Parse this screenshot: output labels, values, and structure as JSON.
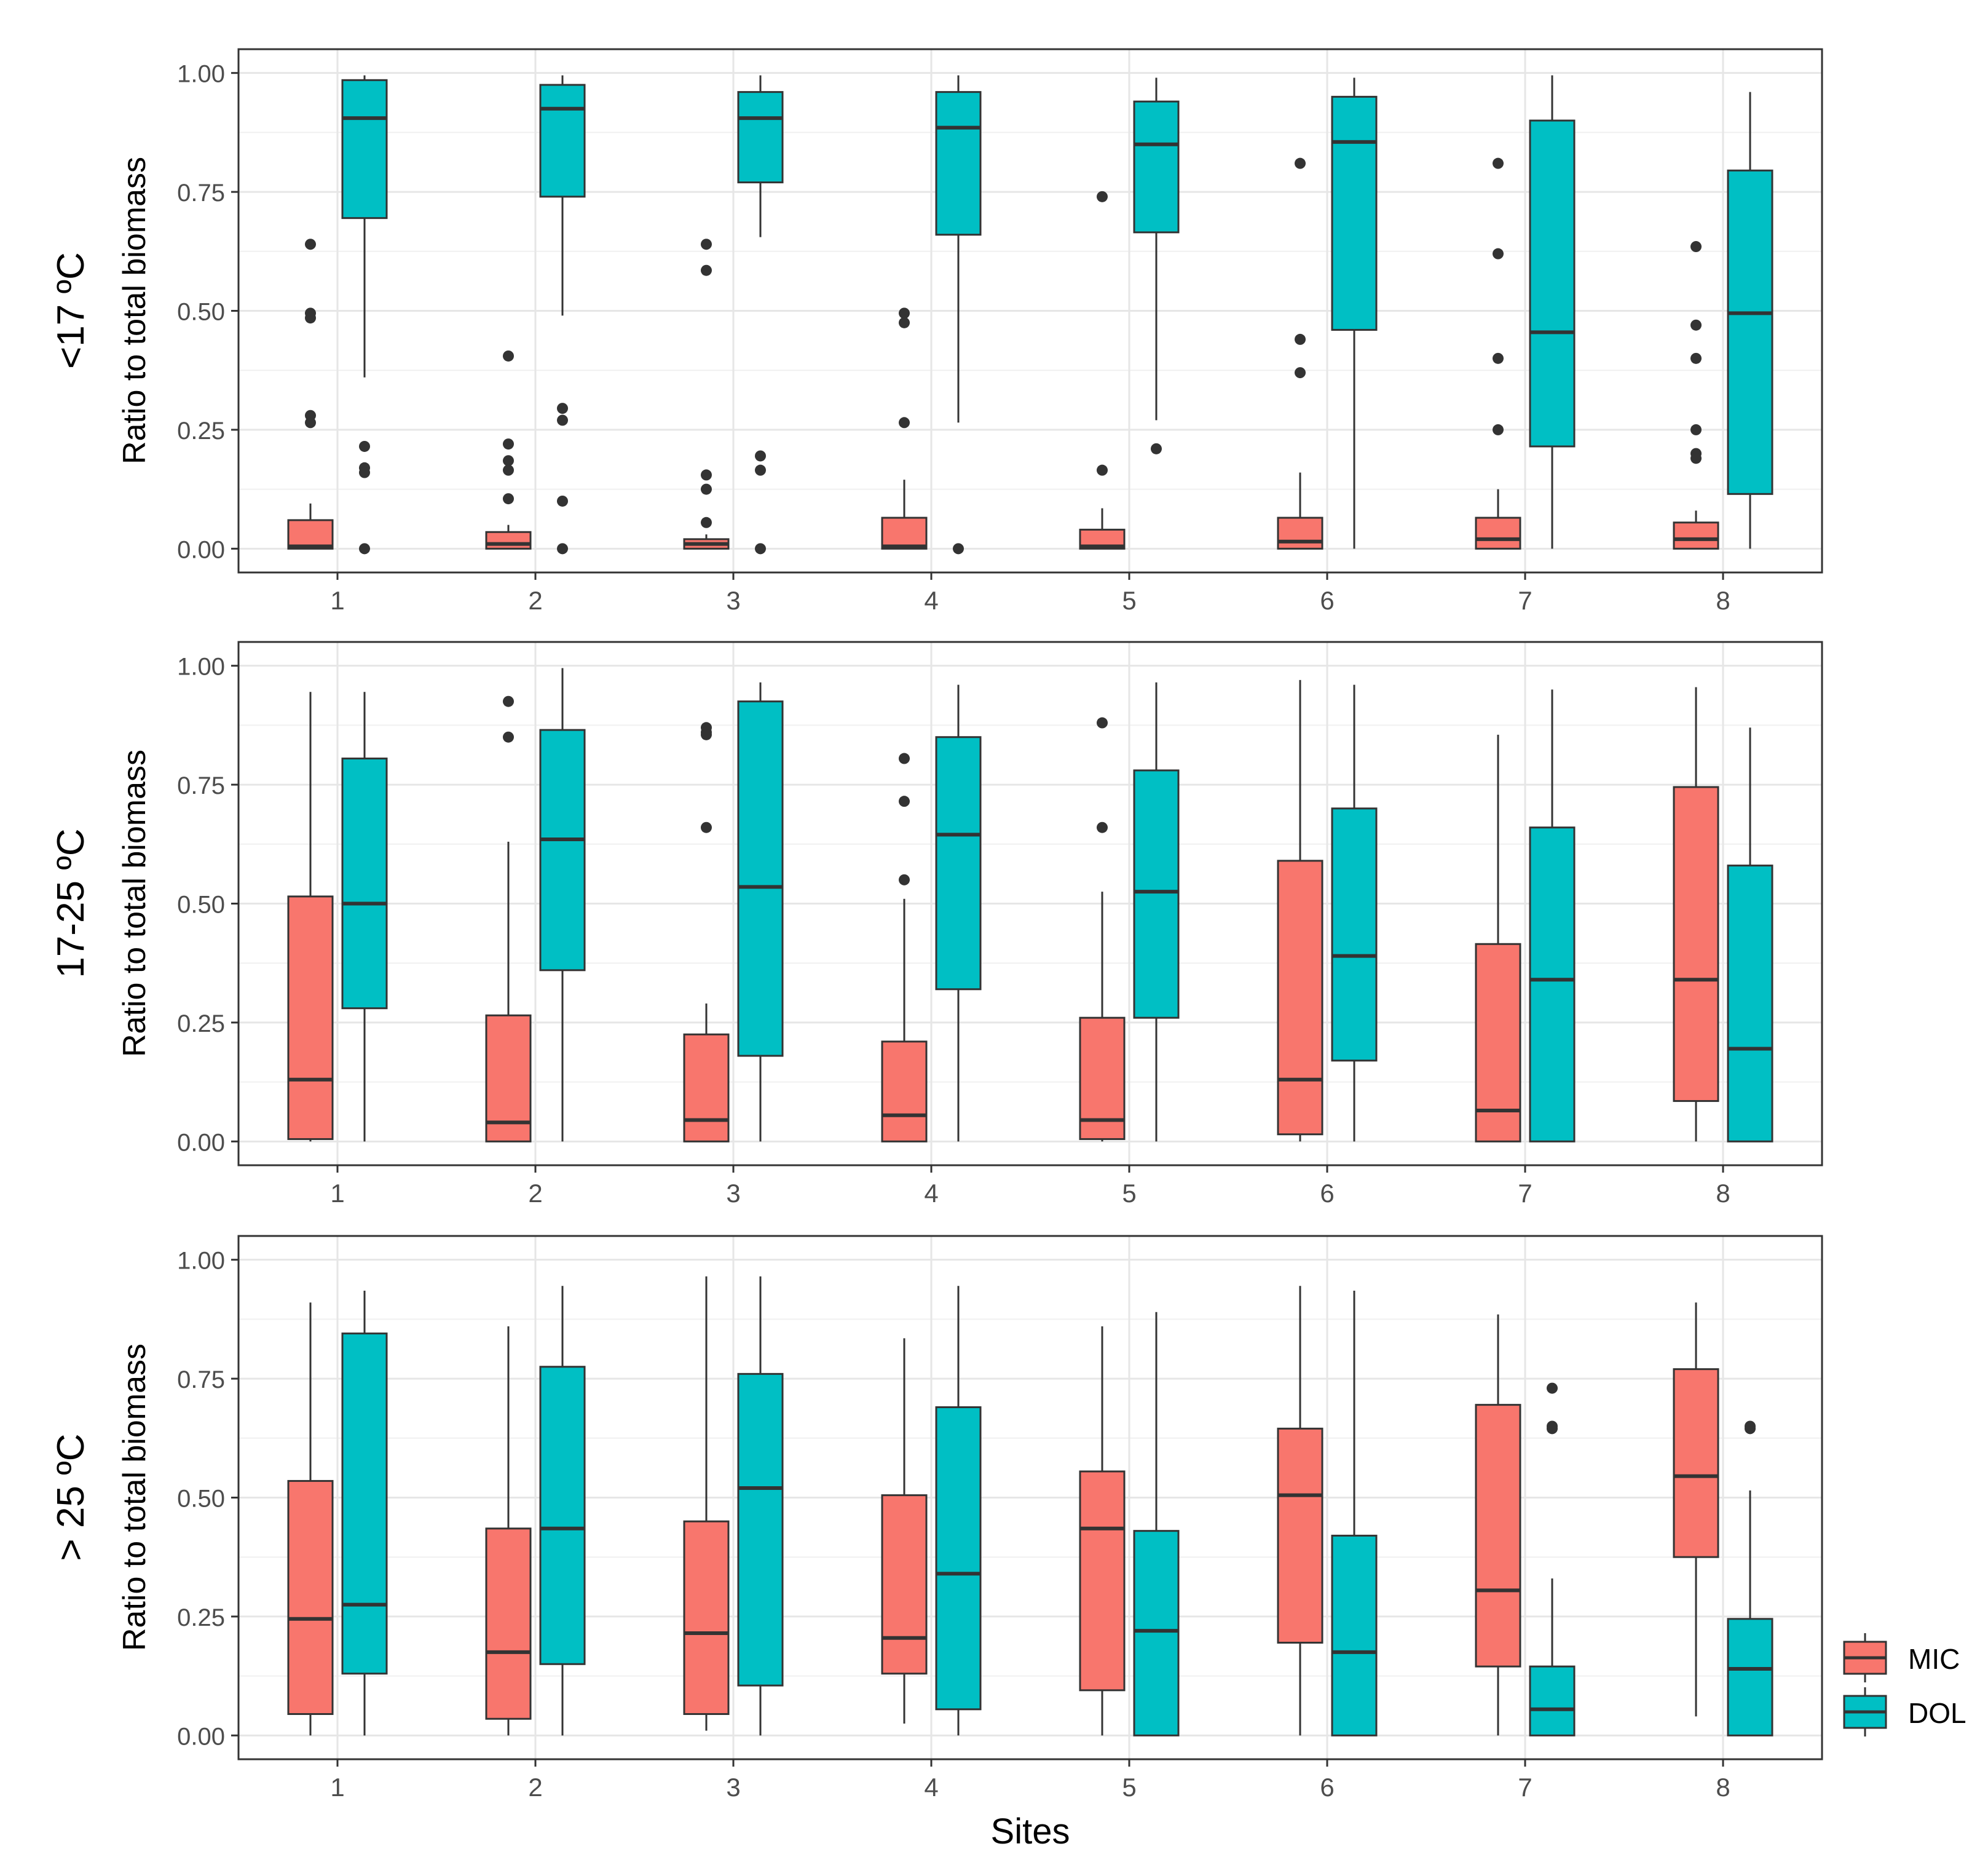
{
  "chart_data": {
    "type": "boxplot",
    "layout": "3 stacked panels sharing x axis",
    "xlabel": "Sites",
    "categories": [
      "1",
      "2",
      "3",
      "4",
      "5",
      "6",
      "7",
      "8"
    ],
    "y_axis_title": "Ratio to total biomass",
    "ylim": [
      -0.05,
      1.05
    ],
    "yticks": [
      0.0,
      0.25,
      0.5,
      0.75,
      1.0
    ],
    "ytick_labels": [
      "0.00",
      "0.25",
      "0.50",
      "0.75",
      "1.00"
    ],
    "grid": true,
    "legend_position": "right-bottom",
    "legend": [
      {
        "name": "MIC",
        "color": "#F8766D"
      },
      {
        "name": "DOL",
        "color": "#00BFC4"
      }
    ],
    "panels": [
      {
        "strip_label": "<17 ºC",
        "series": [
          {
            "name": "MIC",
            "color": "#F8766D",
            "boxes": [
              {
                "min": 0.0,
                "q1": 0.0,
                "median": 0.005,
                "q3": 0.06,
                "max": 0.095,
                "outliers": [
                  0.64,
                  0.495,
                  0.485,
                  0.28,
                  0.265
                ]
              },
              {
                "min": 0.0,
                "q1": 0.0,
                "median": 0.01,
                "q3": 0.035,
                "max": 0.05,
                "outliers": [
                  0.405,
                  0.22,
                  0.185,
                  0.165,
                  0.105
                ]
              },
              {
                "min": 0.0,
                "q1": 0.0,
                "median": 0.01,
                "q3": 0.02,
                "max": 0.03,
                "outliers": [
                  0.64,
                  0.585,
                  0.155,
                  0.125,
                  0.055
                ]
              },
              {
                "min": 0.0,
                "q1": 0.0,
                "median": 0.005,
                "q3": 0.065,
                "max": 0.145,
                "outliers": [
                  0.495,
                  0.475,
                  0.265
                ]
              },
              {
                "min": 0.0,
                "q1": 0.0,
                "median": 0.005,
                "q3": 0.04,
                "max": 0.085,
                "outliers": [
                  0.74,
                  0.165
                ]
              },
              {
                "min": 0.0,
                "q1": 0.0,
                "median": 0.015,
                "q3": 0.065,
                "max": 0.16,
                "outliers": [
                  0.81,
                  0.44,
                  0.37
                ]
              },
              {
                "min": 0.0,
                "q1": 0.0,
                "median": 0.02,
                "q3": 0.065,
                "max": 0.125,
                "outliers": [
                  0.81,
                  0.62,
                  0.4,
                  0.25
                ]
              },
              {
                "min": 0.0,
                "q1": 0.0,
                "median": 0.02,
                "q3": 0.055,
                "max": 0.08,
                "outliers": [
                  0.635,
                  0.47,
                  0.4,
                  0.25,
                  0.2,
                  0.19
                ]
              }
            ]
          },
          {
            "name": "DOL",
            "color": "#00BFC4",
            "boxes": [
              {
                "min": 0.36,
                "q1": 0.695,
                "median": 0.905,
                "q3": 0.985,
                "max": 0.995,
                "outliers": [
                  0.215,
                  0.17,
                  0.16,
                  0.0
                ]
              },
              {
                "min": 0.49,
                "q1": 0.74,
                "median": 0.925,
                "q3": 0.975,
                "max": 0.995,
                "outliers": [
                  0.295,
                  0.27,
                  0.1,
                  0.0
                ]
              },
              {
                "min": 0.655,
                "q1": 0.77,
                "median": 0.905,
                "q3": 0.96,
                "max": 0.995,
                "outliers": [
                  0.195,
                  0.165,
                  0.0
                ]
              },
              {
                "min": 0.265,
                "q1": 0.66,
                "median": 0.885,
                "q3": 0.96,
                "max": 0.995,
                "outliers": [
                  0.0
                ]
              },
              {
                "min": 0.27,
                "q1": 0.665,
                "median": 0.85,
                "q3": 0.94,
                "max": 0.99,
                "outliers": [
                  0.21
                ]
              },
              {
                "min": 0.0,
                "q1": 0.46,
                "median": 0.855,
                "q3": 0.95,
                "max": 0.99,
                "outliers": []
              },
              {
                "min": 0.0,
                "q1": 0.215,
                "median": 0.455,
                "q3": 0.9,
                "max": 0.995,
                "outliers": []
              },
              {
                "min": 0.0,
                "q1": 0.115,
                "median": 0.495,
                "q3": 0.795,
                "max": 0.96,
                "outliers": []
              }
            ]
          }
        ]
      },
      {
        "strip_label": "17-25 ºC",
        "series": [
          {
            "name": "MIC",
            "color": "#F8766D",
            "boxes": [
              {
                "min": 0.0,
                "q1": 0.005,
                "median": 0.13,
                "q3": 0.515,
                "max": 0.945,
                "outliers": []
              },
              {
                "min": 0.0,
                "q1": 0.0,
                "median": 0.04,
                "q3": 0.265,
                "max": 0.63,
                "outliers": [
                  0.925,
                  0.85
                ]
              },
              {
                "min": 0.0,
                "q1": 0.0,
                "median": 0.045,
                "q3": 0.225,
                "max": 0.29,
                "outliers": [
                  0.87,
                  0.86,
                  0.855,
                  0.66
                ]
              },
              {
                "min": 0.0,
                "q1": 0.0,
                "median": 0.055,
                "q3": 0.21,
                "max": 0.51,
                "outliers": [
                  0.805,
                  0.715,
                  0.55
                ]
              },
              {
                "min": 0.0,
                "q1": 0.005,
                "median": 0.045,
                "q3": 0.26,
                "max": 0.525,
                "outliers": [
                  0.88,
                  0.66
                ]
              },
              {
                "min": 0.0,
                "q1": 0.015,
                "median": 0.13,
                "q3": 0.59,
                "max": 0.97,
                "outliers": []
              },
              {
                "min": 0.0,
                "q1": 0.0,
                "median": 0.065,
                "q3": 0.415,
                "max": 0.855,
                "outliers": []
              },
              {
                "min": 0.0,
                "q1": 0.085,
                "median": 0.34,
                "q3": 0.745,
                "max": 0.955,
                "outliers": []
              }
            ]
          },
          {
            "name": "DOL",
            "color": "#00BFC4",
            "boxes": [
              {
                "min": 0.0,
                "q1": 0.28,
                "median": 0.5,
                "q3": 0.805,
                "max": 0.945,
                "outliers": []
              },
              {
                "min": 0.0,
                "q1": 0.36,
                "median": 0.635,
                "q3": 0.865,
                "max": 0.995,
                "outliers": []
              },
              {
                "min": 0.0,
                "q1": 0.18,
                "median": 0.535,
                "q3": 0.925,
                "max": 0.965,
                "outliers": []
              },
              {
                "min": 0.0,
                "q1": 0.32,
                "median": 0.645,
                "q3": 0.85,
                "max": 0.96,
                "outliers": []
              },
              {
                "min": 0.0,
                "q1": 0.26,
                "median": 0.525,
                "q3": 0.78,
                "max": 0.965,
                "outliers": []
              },
              {
                "min": 0.0,
                "q1": 0.17,
                "median": 0.39,
                "q3": 0.7,
                "max": 0.96,
                "outliers": []
              },
              {
                "min": 0.0,
                "q1": 0.0,
                "median": 0.34,
                "q3": 0.66,
                "max": 0.95,
                "outliers": []
              },
              {
                "min": 0.0,
                "q1": 0.0,
                "median": 0.195,
                "q3": 0.58,
                "max": 0.87,
                "outliers": []
              }
            ]
          }
        ]
      },
      {
        "strip_label": "> 25 ºC",
        "series": [
          {
            "name": "MIC",
            "color": "#F8766D",
            "boxes": [
              {
                "min": 0.0,
                "q1": 0.045,
                "median": 0.245,
                "q3": 0.535,
                "max": 0.91,
                "outliers": []
              },
              {
                "min": 0.0,
                "q1": 0.035,
                "median": 0.175,
                "q3": 0.435,
                "max": 0.86,
                "outliers": []
              },
              {
                "min": 0.01,
                "q1": 0.045,
                "median": 0.215,
                "q3": 0.45,
                "max": 0.965,
                "outliers": []
              },
              {
                "min": 0.025,
                "q1": 0.13,
                "median": 0.205,
                "q3": 0.505,
                "max": 0.835,
                "outliers": []
              },
              {
                "min": 0.0,
                "q1": 0.095,
                "median": 0.435,
                "q3": 0.555,
                "max": 0.86,
                "outliers": []
              },
              {
                "min": 0.0,
                "q1": 0.195,
                "median": 0.505,
                "q3": 0.645,
                "max": 0.945,
                "outliers": []
              },
              {
                "min": 0.0,
                "q1": 0.145,
                "median": 0.305,
                "q3": 0.695,
                "max": 0.885,
                "outliers": []
              },
              {
                "min": 0.04,
                "q1": 0.375,
                "median": 0.545,
                "q3": 0.77,
                "max": 0.91,
                "outliers": []
              }
            ]
          },
          {
            "name": "DOL",
            "color": "#00BFC4",
            "boxes": [
              {
                "min": 0.0,
                "q1": 0.13,
                "median": 0.275,
                "q3": 0.845,
                "max": 0.935,
                "outliers": []
              },
              {
                "min": 0.0,
                "q1": 0.15,
                "median": 0.435,
                "q3": 0.775,
                "max": 0.945,
                "outliers": []
              },
              {
                "min": 0.0,
                "q1": 0.105,
                "median": 0.52,
                "q3": 0.76,
                "max": 0.965,
                "outliers": []
              },
              {
                "min": 0.0,
                "q1": 0.055,
                "median": 0.34,
                "q3": 0.69,
                "max": 0.945,
                "outliers": []
              },
              {
                "min": 0.0,
                "q1": 0.0,
                "median": 0.22,
                "q3": 0.43,
                "max": 0.89,
                "outliers": []
              },
              {
                "min": 0.0,
                "q1": 0.0,
                "median": 0.175,
                "q3": 0.42,
                "max": 0.935,
                "outliers": []
              },
              {
                "min": 0.0,
                "q1": 0.0,
                "median": 0.055,
                "q3": 0.145,
                "max": 0.33,
                "outliers": [
                  0.73,
                  0.65,
                  0.645
                ]
              },
              {
                "min": 0.0,
                "q1": 0.0,
                "median": 0.14,
                "q3": 0.245,
                "max": 0.515,
                "outliers": [
                  0.65,
                  0.645
                ]
              }
            ]
          }
        ]
      }
    ]
  }
}
